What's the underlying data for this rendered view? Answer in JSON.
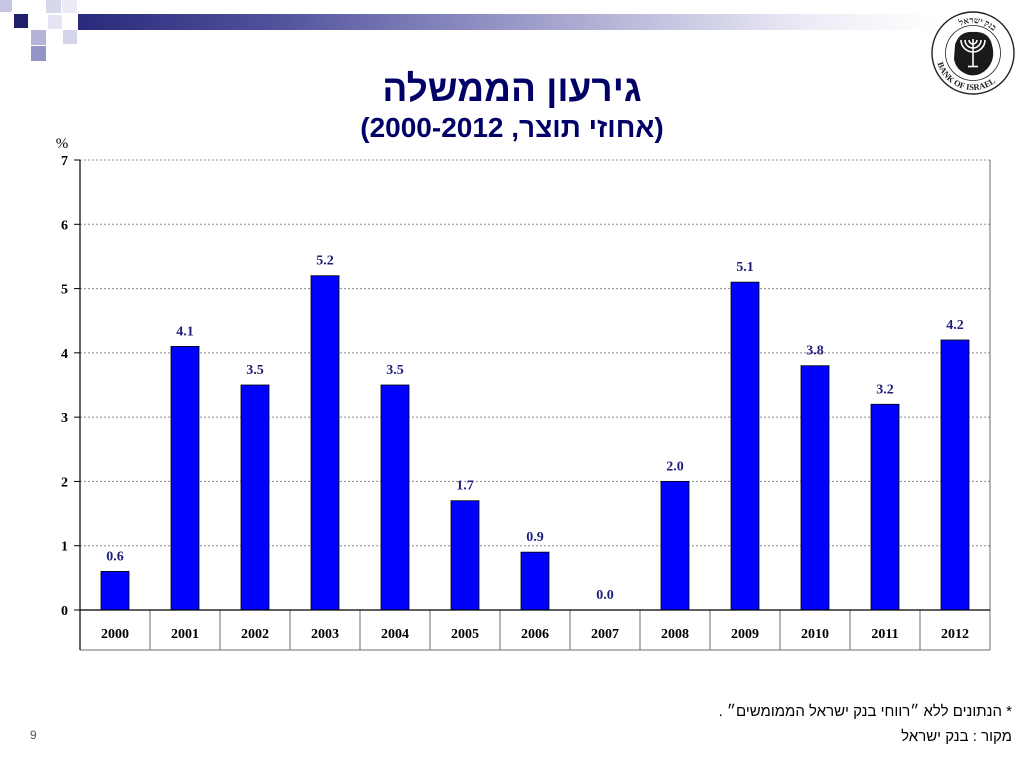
{
  "slide": {
    "page_number": "9"
  },
  "header": {
    "logo_text_hebrew": "בנק ישראל",
    "logo_text_english": "BANK OF ISRAEL"
  },
  "colors": {
    "title": "#000066",
    "bar_fill": "#0000ff",
    "bar_outline": "#000000",
    "data_label": "#1f1f7a",
    "header_bar": "#2a2a7c"
  },
  "chart_data": {
    "type": "bar",
    "title": "גירעון הממשלה",
    "subtitle": "(אחוזי תוצר, 2000-2012)",
    "ylabel": "%",
    "categories": [
      "2000",
      "2001",
      "2002",
      "2003",
      "2004",
      "2005",
      "2006",
      "2007",
      "2008",
      "2009",
      "2010",
      "2011",
      "2012"
    ],
    "values": [
      0.6,
      4.1,
      3.5,
      5.2,
      3.5,
      1.7,
      0.9,
      0.0,
      2.0,
      5.1,
      3.8,
      3.2,
      4.2
    ],
    "data_labels": [
      "0.6",
      "4.1",
      "3.5",
      "5.2",
      "3.5",
      "1.7",
      "0.9",
      "0.0",
      "2.0",
      "5.1",
      "3.8",
      "3.2",
      "4.2"
    ],
    "yticks": [
      "0",
      "1",
      "2",
      "3",
      "4",
      "5",
      "6",
      "7"
    ],
    "ylim": [
      0,
      7
    ],
    "grid": true
  },
  "footer": {
    "note": "* הנתונים ללא ״רווחי בנק ישראל הממומשים״ .",
    "source": "מקור : בנק ישראל"
  }
}
